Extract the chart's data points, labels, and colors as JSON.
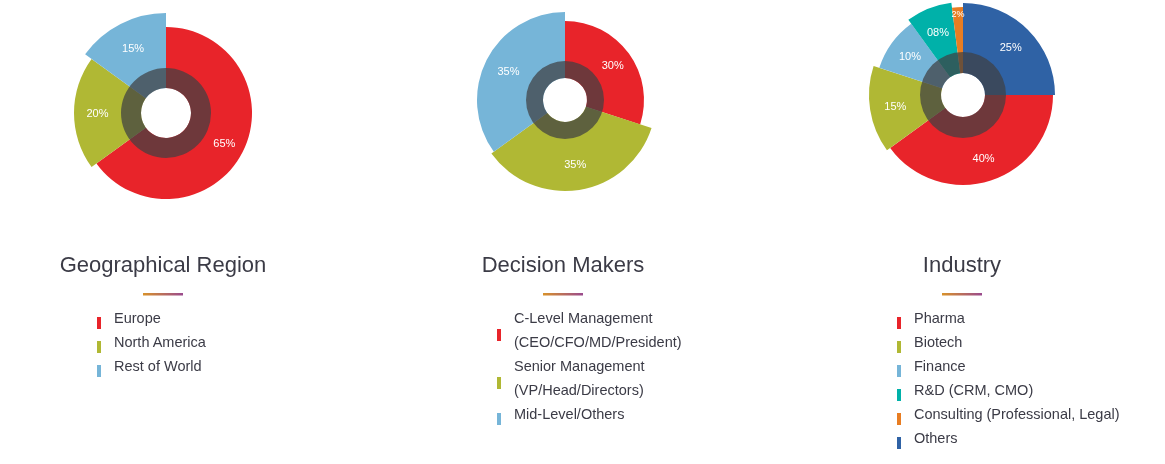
{
  "chart_data": [
    {
      "type": "donut",
      "title": "Geographical Region",
      "categories": [
        "Europe",
        "North America",
        "Rest of World"
      ],
      "values": [
        65,
        20,
        15
      ],
      "value_labels": [
        "65%",
        "20%",
        "15%"
      ],
      "colors": [
        "#e8242a",
        "#b0b834",
        "#76b5d8"
      ],
      "legend": "bottom"
    },
    {
      "type": "donut",
      "title": "Decision Makers",
      "categories": [
        "C-Level Management (CEO/CFO/MD/President)",
        "Senior Management (VP/Head/Directors)",
        "Mid-Level/Others"
      ],
      "values": [
        30,
        35,
        35
      ],
      "value_labels": [
        "30%",
        "35%",
        "35%"
      ],
      "colors": [
        "#e8242a",
        "#b0b834",
        "#76b5d8"
      ],
      "legend": "bottom"
    },
    {
      "type": "donut",
      "title": "Industry",
      "categories": [
        "Pharma",
        "Biotech",
        "Finance",
        "R&D (CRM, CMO)",
        "Consulting (Professional, Legal)",
        "Others"
      ],
      "values": [
        40,
        15,
        10,
        8,
        2,
        25
      ],
      "value_labels": [
        "40%",
        "15%",
        "10%",
        "08%",
        "2%",
        "25%"
      ],
      "colors": [
        "#e8242a",
        "#b0b834",
        "#76b5d8",
        "#00b1a9",
        "#e87d22",
        "#2f62a5"
      ],
      "legend": "bottom"
    }
  ]
}
